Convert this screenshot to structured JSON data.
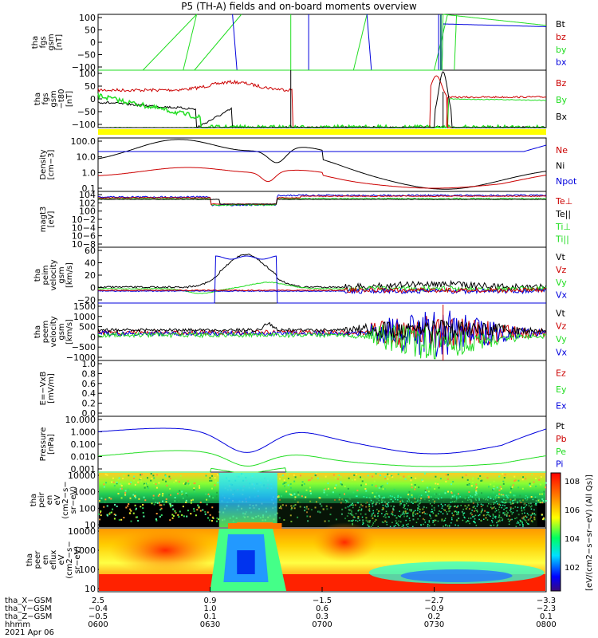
{
  "title": "P5 (TH-A) fields and on-board moments overview",
  "colors": {
    "black": "#000000",
    "red": "#cc0000",
    "green": "#22dd22",
    "blue": "#0000dd",
    "yellow": "#ffff00"
  },
  "chart_data": {
    "type": "line",
    "panels": [
      {
        "id": "fgs",
        "ylabel": [
          "tha",
          "fgs",
          "gsm",
          "[nT]"
        ],
        "yticks": [
          "100",
          "50",
          "0",
          "−50",
          "−100"
        ],
        "legend": [
          {
            "label": "Bt",
            "color": "black"
          },
          {
            "label": "bz",
            "color": "red"
          },
          {
            "label": "by",
            "color": "green"
          },
          {
            "label": "bx",
            "color": "blue"
          }
        ]
      },
      {
        "id": "fgs_detrend",
        "ylabel": [
          "tha",
          "fgs",
          "gsm",
          "−t80",
          "[nT]"
        ],
        "yticks": [
          "100",
          "50",
          "0",
          "−50",
          "−100"
        ],
        "legend": [
          {
            "label": "Bz",
            "color": "red"
          },
          {
            "label": "By",
            "color": "green"
          },
          {
            "label": "Bx",
            "color": "black"
          }
        ]
      },
      {
        "id": "density",
        "ylabel": [
          "Density",
          "[cm−3]"
        ],
        "yticks": [
          "100.0",
          "10.0",
          "1.0",
          "0.1"
        ],
        "legend": [
          {
            "label": "Ne",
            "color": "red"
          },
          {
            "label": "Ni",
            "color": "black"
          },
          {
            "label": "Npot",
            "color": "blue"
          }
        ]
      },
      {
        "id": "temp",
        "ylabel": [
          "magt3",
          "[eV]"
        ],
        "yticks": [
          "104",
          "102",
          "100",
          "10−2",
          "10−4",
          "10−6",
          "10−8"
        ],
        "legend": [
          {
            "label": "Te⊥",
            "color": "red"
          },
          {
            "label": "Te||",
            "color": "black"
          },
          {
            "label": "Ti⊥",
            "color": "green"
          },
          {
            "label": "Ti||",
            "color": "green"
          }
        ]
      },
      {
        "id": "peim_vel",
        "ylabel": [
          "tha",
          "peim",
          "velocity",
          "gsm",
          "[km/s]"
        ],
        "yticks": [
          "60",
          "40",
          "20",
          "0",
          "−20"
        ],
        "legend": [
          {
            "label": "Vt",
            "color": "black"
          },
          {
            "label": "Vz",
            "color": "red"
          },
          {
            "label": "Vy",
            "color": "green"
          },
          {
            "label": "Vx",
            "color": "blue"
          }
        ]
      },
      {
        "id": "peem_vel",
        "ylabel": [
          "tha",
          "peem",
          "velocity",
          "gsm",
          "[km/s]"
        ],
        "yticks": [
          "1500",
          "1000",
          "500",
          "0",
          "−500",
          "−1000"
        ],
        "legend": [
          {
            "label": "Vt",
            "color": "black"
          },
          {
            "label": "Vz",
            "color": "red"
          },
          {
            "label": "Vy",
            "color": "green"
          },
          {
            "label": "Vx",
            "color": "blue"
          }
        ]
      },
      {
        "id": "efield",
        "ylabel": [
          "E=−VxB",
          "[mV/m]"
        ],
        "yticks": [
          "1.0",
          "0.8",
          "0.6",
          "0.4",
          "0.2",
          "0.0"
        ],
        "legend": [
          {
            "label": "Ez",
            "color": "red"
          },
          {
            "label": "Ey",
            "color": "green"
          },
          {
            "label": "Ex",
            "color": "blue"
          }
        ]
      },
      {
        "id": "pressure",
        "ylabel": [
          "Pressure",
          "[nPa]"
        ],
        "yticks": [
          "10.000",
          "1.000",
          "0.100",
          "0.010",
          "0.001"
        ],
        "legend": [
          {
            "label": "Pt",
            "color": "black"
          },
          {
            "label": "Pb",
            "color": "red"
          },
          {
            "label": "Pe",
            "color": "green"
          },
          {
            "label": "Pi",
            "color": "blue"
          }
        ]
      },
      {
        "id": "peir_eflux",
        "ylabel": [
          "tha",
          "peir",
          "en",
          "eV",
          "(cm2−s−",
          "sr−eV)"
        ],
        "yticks": [
          "10000",
          "1000",
          "100",
          "10"
        ]
      },
      {
        "id": "peer_eflux",
        "ylabel": [
          "tha",
          "peer",
          "en",
          "eflux",
          "eV",
          "(cm2−s−",
          "sr−eV)"
        ],
        "yticks": [
          "10000",
          "1000",
          "100",
          "10"
        ]
      }
    ],
    "colorbar": {
      "label": "[eV/(cm2−s−sr−eV) (All Qs)]",
      "ticks": [
        "108",
        "106",
        "104",
        "102"
      ]
    },
    "xaxis": {
      "rows": [
        {
          "label": "tha_X−GSM",
          "values": [
            "2.5",
            "0.9",
            "−1.5",
            "−2.7",
            "−3.3"
          ]
        },
        {
          "label": "tha_Y−GSM",
          "values": [
            "−0.4",
            "1.0",
            "0.6",
            "−0.9",
            "−2.3"
          ]
        },
        {
          "label": "tha_Z−GSM",
          "values": [
            "−0.5",
            "0.1",
            "0.3",
            "0.2",
            "0.1"
          ]
        },
        {
          "label": "hhmm",
          "values": [
            "0600",
            "0630",
            "0700",
            "0730",
            "0800"
          ]
        }
      ],
      "date": "2021 Apr 06"
    }
  }
}
